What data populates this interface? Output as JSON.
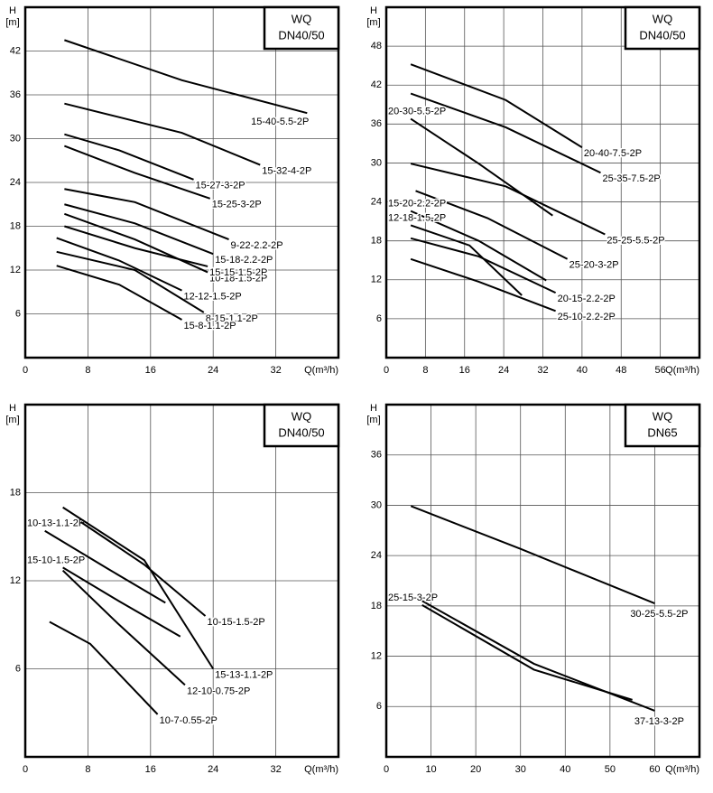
{
  "chart_data": [
    {
      "type": "line",
      "title": "WQ",
      "subtitle": "DN40/50",
      "ylabel": "H",
      "yunit": "[m]",
      "xlabel": "Q(m³/h)",
      "xlim": [
        0,
        40
      ],
      "ylim": [
        0,
        48
      ],
      "xticks": [
        0,
        8,
        16,
        24,
        32
      ],
      "yticks": [
        6,
        12,
        18,
        24,
        30,
        36,
        42
      ],
      "grid": true,
      "series": [
        {
          "name": "15-40-5.5-2P",
          "color": "#000000",
          "x": [
            5,
            20,
            36
          ],
          "values": [
            43.5,
            38,
            33.5
          ]
        },
        {
          "name": "15-32-4-2P",
          "color": "#000000",
          "x": [
            5,
            20,
            30
          ],
          "values": [
            34.8,
            30.8,
            26.4
          ]
        },
        {
          "name": "15-27-3-2P",
          "color": "#000000",
          "x": [
            5,
            12,
            21.5
          ],
          "values": [
            30.6,
            28.4,
            24.4
          ]
        },
        {
          "name": "15-25-3-2P",
          "color": "#000000",
          "x": [
            5,
            14,
            23.6
          ],
          "values": [
            29,
            25.3,
            21.8
          ]
        },
        {
          "name": "9-22-2.2-2P",
          "color": "#000000",
          "x": [
            5,
            14,
            26
          ],
          "values": [
            23.1,
            21.3,
            16.2
          ]
        },
        {
          "name": "15-18-2.2-2P",
          "color": "#000000",
          "x": [
            5,
            14,
            24
          ],
          "values": [
            21,
            18.4,
            14.2
          ]
        },
        {
          "name": "10-18-1.5-2P",
          "color": "#000000",
          "x": [
            5,
            14,
            23.3
          ],
          "values": [
            19.7,
            16.2,
            11.7
          ]
        },
        {
          "name": "15-15-1.5-2P",
          "color": "#000000",
          "x": [
            5,
            14,
            23.3
          ],
          "values": [
            18,
            15,
            12.5
          ]
        },
        {
          "name": "12-12-1.5-2P",
          "color": "#000000",
          "x": [
            4,
            12,
            20
          ],
          "values": [
            16.4,
            13.3,
            9.2
          ]
        },
        {
          "name": "8-15-1.1-2P",
          "color": "#000000",
          "x": [
            4,
            14,
            22.8
          ],
          "values": [
            14.5,
            12,
            6.2
          ]
        },
        {
          "name": "15-8-1.1-2P",
          "color": "#000000",
          "x": [
            4,
            12,
            20
          ],
          "values": [
            12.6,
            10,
            5.2
          ]
        }
      ]
    },
    {
      "type": "line",
      "title": "WQ",
      "subtitle": "DN40/50",
      "ylabel": "H",
      "yunit": "[m]",
      "xlabel": "Q(m³/h)",
      "xlim": [
        0,
        64
      ],
      "ylim": [
        0,
        54
      ],
      "xticks": [
        0,
        8,
        16,
        24,
        32,
        40,
        48,
        56
      ],
      "yticks": [
        6,
        12,
        18,
        24,
        30,
        36,
        42,
        48
      ],
      "grid": true,
      "series": [
        {
          "name": "20-40-7.5-2P",
          "color": "#000000",
          "x": [
            5,
            24.4,
            40
          ],
          "values": [
            45.2,
            39.7,
            32.4
          ]
        },
        {
          "name": "25-35-7.5-2P",
          "color": "#000000",
          "x": [
            5,
            24.4,
            43.8
          ],
          "values": [
            40.7,
            35.5,
            28.5
          ]
        },
        {
          "name": "20-30-5.5-2P",
          "color": "#000000",
          "x": [
            5,
            18.9,
            34
          ],
          "values": [
            36.8,
            29.9,
            21.9
          ]
        },
        {
          "name": "25-25-5.5-2P",
          "color": "#000000",
          "x": [
            5,
            24.4,
            44.7
          ],
          "values": [
            29.9,
            26.4,
            19
          ]
        },
        {
          "name": "25-20-3-2P",
          "color": "#000000",
          "x": [
            6,
            20.7,
            37
          ],
          "values": [
            25.7,
            21.5,
            15.2
          ]
        },
        {
          "name": "15-20-2.2-2P",
          "color": "#000000",
          "x": [
            5,
            18.9,
            32.7
          ],
          "values": [
            22.6,
            18,
            11.9
          ]
        },
        {
          "name": "12-18-1.5-2P",
          "color": "#000000",
          "x": [
            5,
            17,
            27.7
          ],
          "values": [
            20.4,
            17.3,
            9.6
          ]
        },
        {
          "name": "20-15-2.2-2P",
          "color": "#000000",
          "x": [
            5,
            18.9,
            34.6
          ],
          "values": [
            18.4,
            15.6,
            10
          ]
        },
        {
          "name": "25-10-2.2-2P",
          "color": "#000000",
          "x": [
            5,
            18.9,
            34.6
          ],
          "values": [
            15.2,
            11.7,
            7.2
          ]
        }
      ]
    },
    {
      "type": "line",
      "title": "WQ",
      "subtitle": "DN40/50",
      "ylabel": "H",
      "yunit": "[m]",
      "xlabel": "Q(m³/h)",
      "xlim": [
        0,
        40
      ],
      "ylim": [
        0,
        24
      ],
      "xticks": [
        0,
        8,
        16,
        24,
        32
      ],
      "yticks": [
        6,
        12,
        18
      ],
      "grid": true,
      "series": [
        {
          "name": "10-13-1.1-2P",
          "color": "#000000",
          "x": [
            2.5,
            10.6,
            17.9
          ],
          "values": [
            15.4,
            12.8,
            10.5
          ]
        },
        {
          "name": "15-10-1.5-2P",
          "color": "#000000",
          "x": [
            4.8,
            12,
            19.8
          ],
          "values": [
            12.9,
            10.6,
            8.2
          ]
        },
        {
          "name": "10-15-1.5-2P",
          "color": "#000000",
          "x": [
            7.1,
            15.2,
            23
          ],
          "values": [
            16,
            13.1,
            9.6
          ]
        },
        {
          "name": "15-13-1.1-2P",
          "color": "#000000",
          "x": [
            4.8,
            15.2,
            24
          ],
          "values": [
            17,
            13.4,
            6
          ]
        },
        {
          "name": "12-10-0.75-2P",
          "color": "#000000",
          "x": [
            4.8,
            11.8,
            20.4
          ],
          "values": [
            12.7,
            9.1,
            4.9
          ]
        },
        {
          "name": "10-7-0.55-2P",
          "color": "#000000",
          "x": [
            3.1,
            8.3,
            16.9
          ],
          "values": [
            9.2,
            7.7,
            2.9
          ]
        }
      ]
    },
    {
      "type": "line",
      "title": "WQ",
      "subtitle": "DN65",
      "ylabel": "H",
      "yunit": "[m]",
      "xlabel": "Q(m³/h)",
      "xlim": [
        0,
        70
      ],
      "ylim": [
        0,
        42
      ],
      "xticks": [
        0,
        10,
        20,
        30,
        40,
        50,
        60
      ],
      "yticks": [
        6,
        12,
        18,
        24,
        30,
        36
      ],
      "grid": true,
      "series": [
        {
          "name": "30-25-5.5-2P",
          "color": "#000000",
          "x": [
            5.5,
            30,
            60
          ],
          "values": [
            29.9,
            24.8,
            18.3
          ]
        },
        {
          "name": "37-13-3-2P",
          "color": "#000000",
          "x": [
            8,
            33,
            60
          ],
          "values": [
            18.6,
            11.1,
            5.5
          ]
        },
        {
          "name": "25-15-3-2P",
          "color": "#000000",
          "x": [
            8,
            33,
            55
          ],
          "values": [
            18.1,
            10.4,
            6.8
          ]
        }
      ]
    }
  ]
}
